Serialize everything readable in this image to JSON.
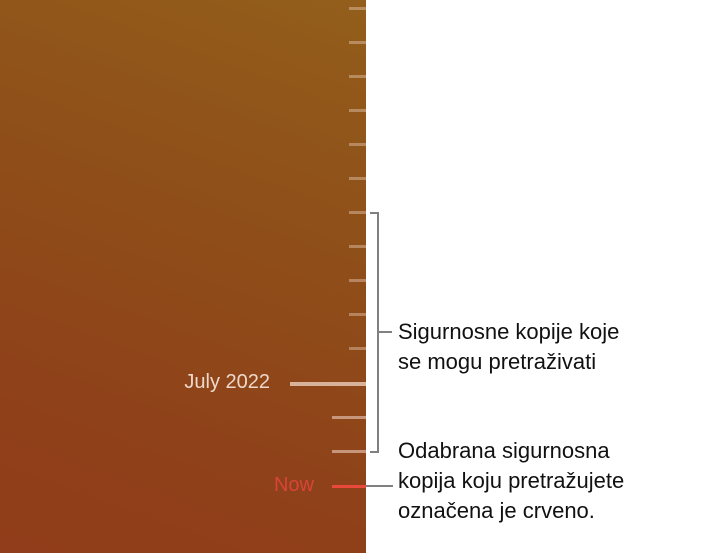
{
  "timeline": {
    "date_label": "July 2022",
    "now_label": "Now",
    "selected_color": "#e8493b"
  },
  "callouts": {
    "browsable_line1": "Sigurnosne kopije koje",
    "browsable_line2": "se mogu pretraživati",
    "selected_line1": "Odabrana sigurnosna",
    "selected_line2": "kopija koju pretražujete",
    "selected_line3": "označena je crveno."
  }
}
